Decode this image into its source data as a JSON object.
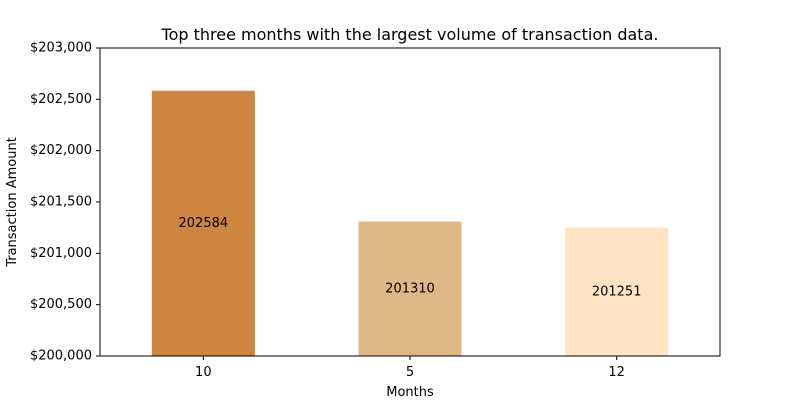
{
  "chart_data": {
    "type": "bar",
    "title": "Top three months with the largest volume of transaction data.",
    "xlabel": "Months",
    "ylabel": "Transaction Amount",
    "categories": [
      "10",
      "5",
      "12"
    ],
    "values": [
      202584,
      201310,
      201251
    ],
    "data_labels": [
      "202584",
      "201310",
      "201251"
    ],
    "colors": [
      "#cd853f",
      "#deb887",
      "#ffe4c4"
    ],
    "ylim": [
      200000,
      203000
    ],
    "yticks": [
      200000,
      200500,
      201000,
      201500,
      202000,
      202500,
      203000
    ],
    "ytick_labels": [
      "$200,000",
      "$200,500",
      "$201,000",
      "$201,500",
      "$202,000",
      "$202,500",
      "$203,000"
    ],
    "grid": false,
    "legend": false
  }
}
